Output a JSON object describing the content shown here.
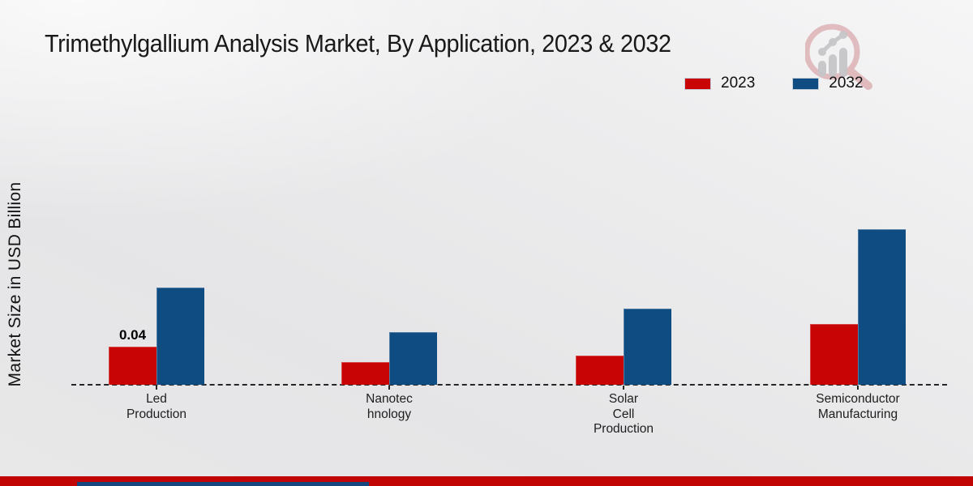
{
  "header": {
    "title": "Trimethylgallium Analysis Market, By Application, 2023 & 2032"
  },
  "y_axis": {
    "label": "Market Size in USD Billion"
  },
  "legend": {
    "position": "top-right",
    "items": [
      {
        "label": "2023",
        "color": "#c80404"
      },
      {
        "label": "2032",
        "color": "#0f4c81"
      }
    ]
  },
  "footer": {
    "bar_color": "#c10505",
    "accent_color": "#16477e"
  },
  "logo": {
    "name": "market-research-magnifier-logo",
    "glass_color": "#dcaeb2",
    "bars_color": "#c6c6c9"
  },
  "chart_data": {
    "type": "bar",
    "title": "Trimethylgallium Analysis Market, By Application, 2023 & 2032",
    "xlabel": "",
    "ylabel": "Market Size in USD Billion",
    "unit": "USD Billion",
    "grid": false,
    "axis_style": "dashed-baseline-only",
    "legend_position": "top-right",
    "ylim": [
      0,
      0.2
    ],
    "categories": [
      "Led Production",
      "Nanotechnology",
      "Solar Cell Production",
      "Semiconductor Manufacturing"
    ],
    "category_label_lines": [
      [
        "Led",
        "Production"
      ],
      [
        "Nanotec",
        "hnology"
      ],
      [
        "Solar",
        "Cell",
        "Production"
      ],
      [
        "Semiconductor",
        "Manufacturing"
      ]
    ],
    "series": [
      {
        "name": "2023",
        "color": "#c80404",
        "values": [
          0.04,
          0.024,
          0.031,
          0.064
        ]
      },
      {
        "name": "2032",
        "color": "#0f4c81",
        "values": [
          0.102,
          0.055,
          0.08,
          0.163
        ]
      }
    ],
    "annotations": [
      {
        "category_index": 0,
        "series_index": 0,
        "text": "0.04"
      }
    ]
  }
}
